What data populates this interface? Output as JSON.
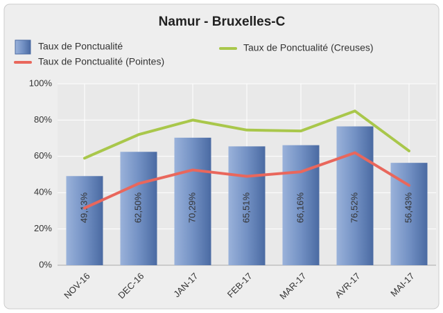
{
  "chart_data": {
    "type": "bar",
    "title": "Namur - Bruxelles-C",
    "categories": [
      "NOV-16",
      "DEC-16",
      "JAN-17",
      "FEB-17",
      "MAR-17",
      "AVR-17",
      "MAI-17"
    ],
    "series": [
      {
        "name": "Taux de Ponctualité",
        "type": "bar",
        "color": "#5f7fb6",
        "values": [
          49.13,
          62.5,
          70.29,
          65.51,
          66.16,
          76.52,
          56.43
        ],
        "value_labels": [
          "49,13%",
          "62,50%",
          "70,29%",
          "65,51%",
          "66,16%",
          "76,52%",
          "56,43%"
        ]
      },
      {
        "name": "Taux de Ponctualité (Creuses)",
        "type": "line",
        "color": "#a9c74b",
        "values": [
          59,
          72,
          80,
          74.5,
          74,
          85,
          63
        ]
      },
      {
        "name": "Taux de Ponctualité (Pointes)",
        "type": "line",
        "color": "#e9675c",
        "values": [
          31.5,
          45,
          52.5,
          49,
          51.5,
          62,
          44
        ]
      }
    ],
    "ylim": [
      0,
      100
    ],
    "yticks": [
      {
        "value": 0,
        "label": "0%"
      },
      {
        "value": 20,
        "label": "20%"
      },
      {
        "value": 40,
        "label": "40%"
      },
      {
        "value": 60,
        "label": "60%"
      },
      {
        "value": 80,
        "label": "80%"
      },
      {
        "value": 100,
        "label": "100%"
      }
    ],
    "grid": true
  }
}
